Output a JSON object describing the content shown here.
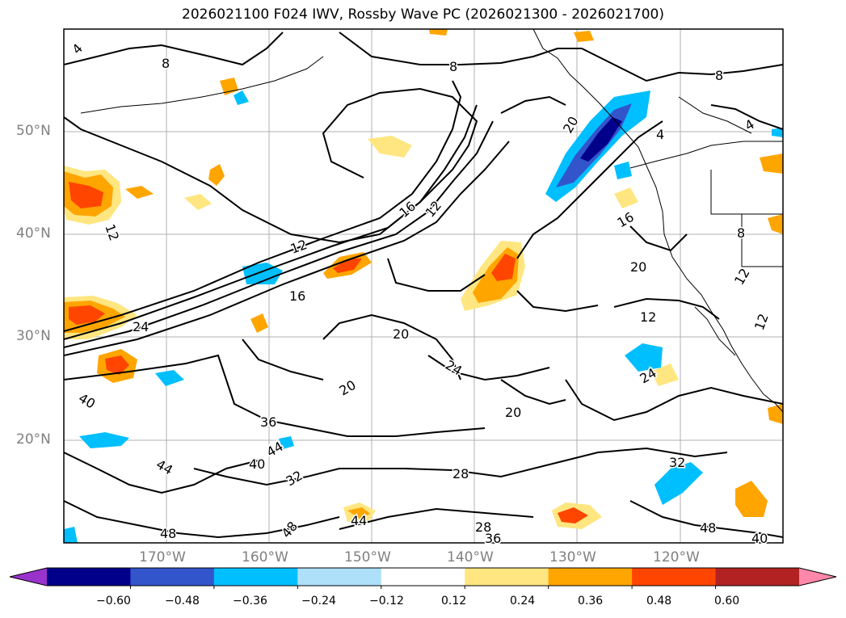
{
  "title": "2026021100 F024 IWV, Rossby Wave PC (2026021300 - 2026021700)",
  "lat_labels": [
    "50°N",
    "40°N",
    "30°N",
    "20°N"
  ],
  "lon_labels": [
    "170°W",
    "160°W",
    "150°W",
    "140°W",
    "130°W",
    "120°W"
  ],
  "colorbar": {
    "tick_labels": [
      "−0.60",
      "−0.48",
      "−0.36",
      "−0.24",
      "−0.12",
      "0.12",
      "0.24",
      "0.36",
      "0.48",
      "0.60"
    ],
    "colors": [
      "#9933cc",
      "#00008b",
      "#3355cc",
      "#00bfff",
      "#aee0fa",
      "#ffffff",
      "#ffe680",
      "#ffa500",
      "#ff4500",
      "#b22222",
      "#ff88aa"
    ]
  },
  "contour_labels": [
    "4",
    "8",
    "8",
    "8",
    "4",
    "20",
    "12",
    "16",
    "12",
    "16",
    "4",
    "12",
    "16",
    "20",
    "12",
    "24",
    "20",
    "24",
    "20",
    "20",
    "24",
    "40",
    "36",
    "44",
    "40",
    "44",
    "32",
    "28",
    "32",
    "44",
    "48",
    "28",
    "36",
    "48",
    "48",
    "40",
    "12",
    "8",
    "12"
  ]
}
